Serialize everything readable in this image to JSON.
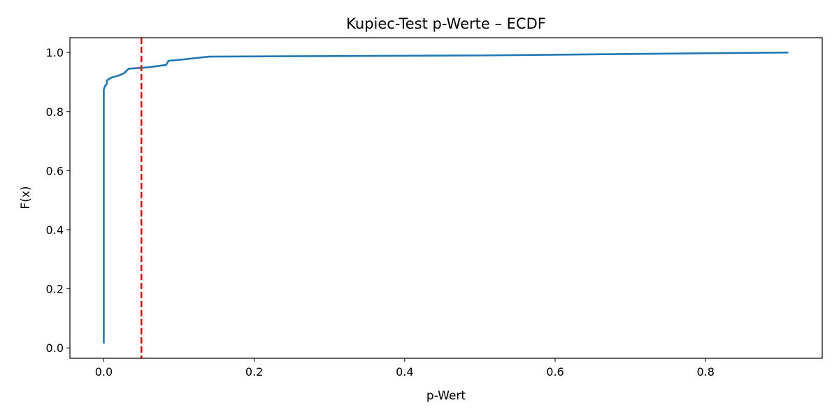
{
  "chart_data": {
    "type": "line",
    "title": "Kupiec-Test p-Werte – ECDF",
    "xlabel": "p-Wert",
    "ylabel": "F(x)",
    "xlim": [
      -0.045,
      0.955
    ],
    "ylim": [
      -0.035,
      1.05
    ],
    "xticks": [
      0.0,
      0.2,
      0.4,
      0.6,
      0.8
    ],
    "xtick_labels": [
      "0.0",
      "0.2",
      "0.4",
      "0.6",
      "0.8"
    ],
    "yticks": [
      0.0,
      0.2,
      0.4,
      0.6,
      0.8,
      1.0
    ],
    "ytick_labels": [
      "0.0",
      "0.2",
      "0.4",
      "0.6",
      "0.8",
      "1.0"
    ],
    "grid": false,
    "series": [
      {
        "color": "#1f77b4",
        "x": [
          0.0,
          0.0,
          0.0,
          0.0,
          0.0005,
          0.001,
          0.002,
          0.004,
          0.004,
          0.01,
          0.02,
          0.027,
          0.033,
          0.06,
          0.083,
          0.086,
          0.1,
          0.14,
          0.5,
          0.91
        ],
        "y": [
          0.015,
          0.5,
          0.86,
          0.875,
          0.877,
          0.882,
          0.888,
          0.893,
          0.905,
          0.915,
          0.922,
          0.93,
          0.945,
          0.95,
          0.958,
          0.972,
          0.975,
          0.986,
          0.99,
          1.0
        ]
      }
    ],
    "reference_lines": [
      {
        "axis": "x",
        "value": 0.05,
        "color": "#e00000",
        "style": "dashed"
      }
    ]
  }
}
